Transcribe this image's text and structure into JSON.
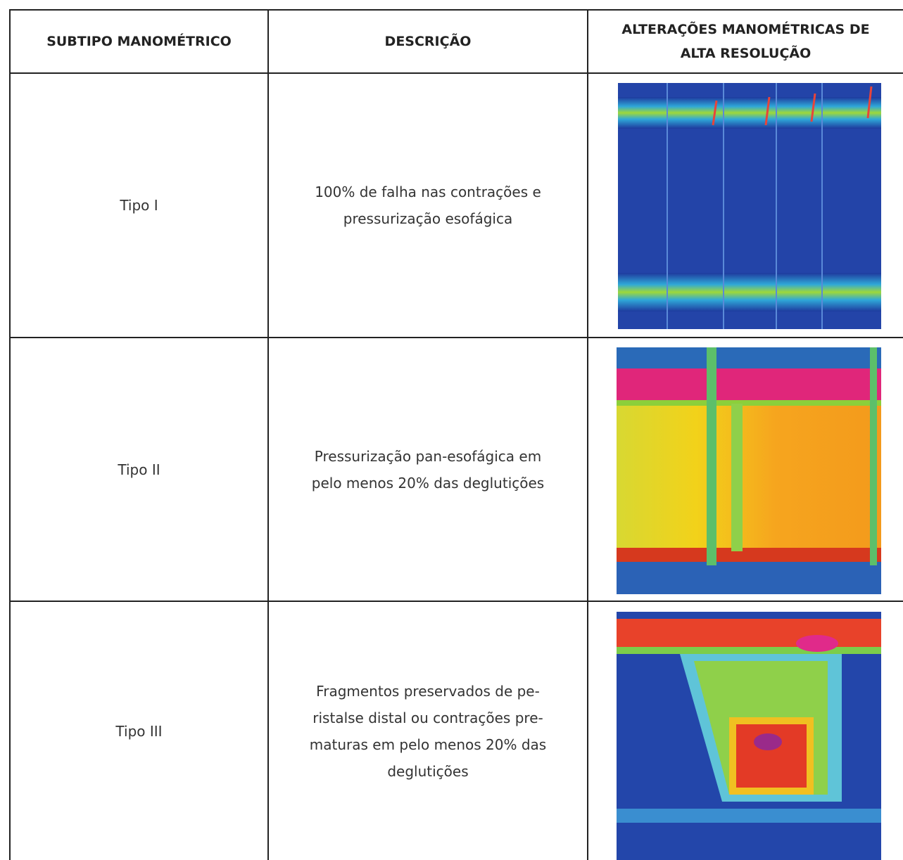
{
  "table": {
    "header": [
      "SUBTIPO MANOMÉTRICO",
      "DESCRIÇÃO",
      [
        "ALTERAÇÕES MANOMÉTRICAS DE",
        "ALTA RESOLUÇÃO"
      ]
    ],
    "rows": [
      {
        "subtype": "Tipo I",
        "description": [
          "100% de falha nas contrações e",
          "pressurização esofágica"
        ]
      },
      {
        "subtype": "Tipo II",
        "description": [
          "Pressurização pan-esofágica em",
          "pelo menos 20% das deglutições"
        ]
      },
      {
        "subtype": "Tipo III",
        "description": [
          "Fragmentos preservados de pe-",
          "ristalse distal ou contrações pre-",
          "maturas em pelo menos 20% das",
          "deglutições"
        ]
      }
    ]
  }
}
